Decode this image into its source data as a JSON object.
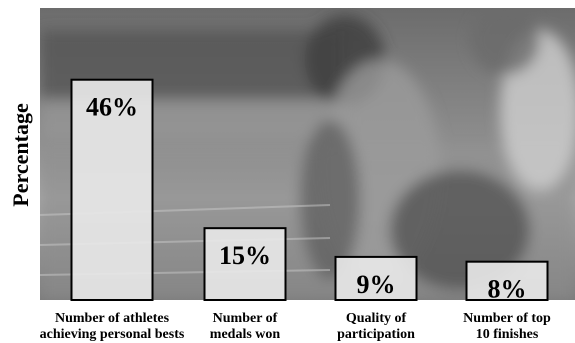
{
  "chart_data": {
    "type": "bar",
    "title": "",
    "xlabel": "",
    "ylabel": "Percentage",
    "ylim": [
      0,
      50
    ],
    "categories": [
      [
        "Number of athletes",
        "achieving personal bests"
      ],
      [
        "Number of",
        "medals won"
      ],
      [
        "Quality of",
        "participation"
      ],
      [
        "Number of top",
        "10 finishes"
      ]
    ],
    "values": [
      46,
      15,
      9,
      8
    ],
    "data_labels": [
      "46%",
      "15%",
      "9%",
      "8%"
    ],
    "grid": false,
    "legend": "none",
    "background": "blurred photo of runners on an athletics track",
    "colors": {
      "bar_fill": "#e9e9e9",
      "bar_stroke": "#000000",
      "text": "#000000",
      "track": "#8a8a8a",
      "stands": "#5e5e5e"
    }
  }
}
